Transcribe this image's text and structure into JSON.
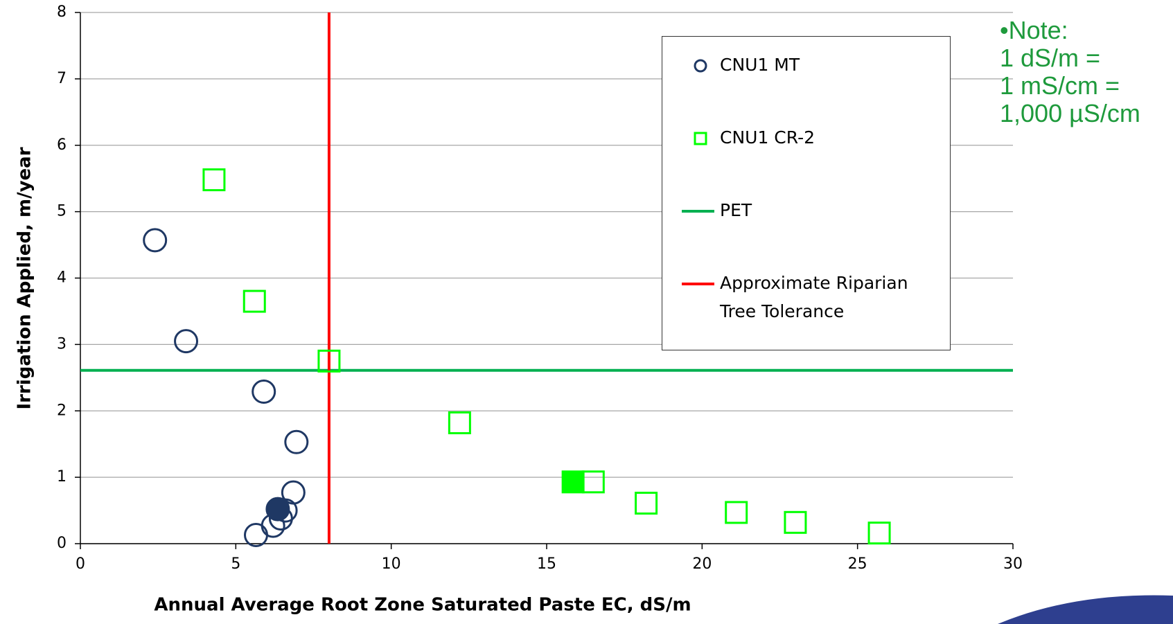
{
  "chart_data": {
    "type": "scatter",
    "x_label": "Annual Average Root Zone Saturated Paste EC, dS/m",
    "y_label": "Irrigation Applied, m/year",
    "xlim": [
      0,
      30
    ],
    "xticks": [
      0,
      5,
      10,
      15,
      20,
      25,
      30
    ],
    "ylim": [
      0,
      8
    ],
    "yticks": [
      0,
      1,
      2,
      3,
      4,
      5,
      6,
      7,
      8
    ],
    "grid": true,
    "series": [
      {
        "name": "CNU1 MT",
        "marker": "circle",
        "filled": false,
        "color": "#1f3864",
        "x": [
          2.4,
          3.4,
          5.9,
          6.95,
          6.85,
          6.6,
          6.45,
          6.2,
          5.65
        ],
        "values": [
          4.57,
          3.05,
          2.29,
          1.53,
          0.77,
          0.5,
          0.38,
          0.27,
          0.13
        ]
      },
      {
        "name": "CNU1 CR-2",
        "marker": "square",
        "filled": false,
        "color": "#00ff00",
        "x": [
          4.3,
          5.6,
          8.0,
          12.2,
          16.5,
          18.2,
          21.1,
          23.0,
          25.7
        ],
        "values": [
          5.48,
          3.65,
          2.75,
          1.82,
          0.93,
          0.61,
          0.47,
          0.32,
          0.16
        ]
      },
      {
        "marker": "circle",
        "filled": true,
        "color": "#1f3864",
        "x": [
          6.35
        ],
        "values": [
          0.52
        ]
      },
      {
        "marker": "square",
        "filled": true,
        "color": "#00ff00",
        "x": [
          15.85
        ],
        "values": [
          0.93
        ]
      }
    ],
    "reference_lines": [
      {
        "name": "PET",
        "orientation": "horizontal",
        "value": 2.61,
        "color": "#00b050"
      },
      {
        "name": "Approximate Riparian Tree Tolerance",
        "orientation": "vertical",
        "value": 8,
        "color": "#ff0000"
      }
    ],
    "note": [
      "•Note:",
      "1 dS/m =",
      "1 mS/cm =",
      "1,000 µS/cm"
    ],
    "note_color": "#1e9a3c"
  }
}
